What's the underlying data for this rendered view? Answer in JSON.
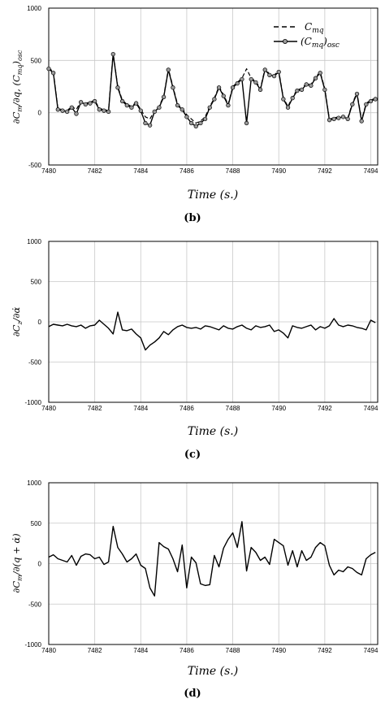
{
  "chart_data": [
    {
      "type": "line",
      "panel": "(b)",
      "xlabel": "Time (s.)",
      "ylabel": "∂Cm/∂q, (Cmq)osc",
      "xlim": [
        7480,
        7494.3
      ],
      "ylim": [
        -500,
        1000
      ],
      "xticks": [
        7480,
        7482,
        7484,
        7486,
        7488,
        7490,
        7492,
        7494
      ],
      "yticks": [
        -500,
        0,
        500,
        1000
      ],
      "grid": true,
      "legend_position": "top-right",
      "series": [
        {
          "name": "Cmq",
          "style": "dashed",
          "x": [
            7480.0,
            7480.2,
            7480.4,
            7480.6,
            7480.8,
            7481.0,
            7481.2,
            7481.4,
            7481.6,
            7481.8,
            7482.0,
            7482.2,
            7482.4,
            7482.6,
            7482.8,
            7483.0,
            7483.2,
            7483.4,
            7483.6,
            7483.8,
            7484.0,
            7484.2,
            7484.4,
            7484.6,
            7484.8,
            7485.0,
            7485.2,
            7485.4,
            7485.6,
            7485.8,
            7486.0,
            7486.2,
            7486.4,
            7486.6,
            7486.8,
            7487.0,
            7487.2,
            7487.4,
            7487.6,
            7487.8,
            7488.0,
            7488.2,
            7488.4,
            7488.6,
            7488.8,
            7489.0,
            7489.2,
            7489.4,
            7489.6,
            7489.8,
            7490.0,
            7490.2,
            7490.4,
            7490.6,
            7490.8,
            7491.0,
            7491.2,
            7491.4,
            7491.6,
            7491.8,
            7492.0,
            7492.2,
            7492.4,
            7492.6,
            7492.8,
            7493.0,
            7493.2,
            7493.4,
            7493.6,
            7493.8,
            7494.0,
            7494.2
          ],
          "y": [
            430,
            390,
            40,
            30,
            20,
            60,
            30,
            110,
            90,
            100,
            120,
            40,
            30,
            20,
            570,
            250,
            120,
            80,
            60,
            100,
            30,
            -40,
            -60,
            20,
            60,
            160,
            420,
            250,
            80,
            40,
            -20,
            -60,
            -100,
            -80,
            -40,
            60,
            140,
            250,
            170,
            80,
            250,
            290,
            330,
            420,
            330,
            300,
            230,
            420,
            370,
            360,
            400,
            140,
            60,
            150,
            220,
            230,
            280,
            270,
            340,
            390,
            230,
            -60,
            -50,
            -40,
            -30,
            -50,
            90,
            190,
            -70,
            90,
            120,
            140
          ]
        },
        {
          "name": "(Cmq)osc",
          "style": "solid-marker",
          "x": [
            7480.0,
            7480.2,
            7480.4,
            7480.6,
            7480.8,
            7481.0,
            7481.2,
            7481.4,
            7481.6,
            7481.8,
            7482.0,
            7482.2,
            7482.4,
            7482.6,
            7482.8,
            7483.0,
            7483.2,
            7483.4,
            7483.6,
            7483.8,
            7484.0,
            7484.2,
            7484.4,
            7484.6,
            7484.8,
            7485.0,
            7485.2,
            7485.4,
            7485.6,
            7485.8,
            7486.0,
            7486.2,
            7486.4,
            7486.6,
            7486.8,
            7487.0,
            7487.2,
            7487.4,
            7487.6,
            7487.8,
            7488.0,
            7488.2,
            7488.4,
            7488.6,
            7488.8,
            7489.0,
            7489.2,
            7489.4,
            7489.6,
            7489.8,
            7490.0,
            7490.2,
            7490.4,
            7490.6,
            7490.8,
            7491.0,
            7491.2,
            7491.4,
            7491.6,
            7491.8,
            7492.0,
            7492.2,
            7492.4,
            7492.6,
            7492.8,
            7493.0,
            7493.2,
            7493.4,
            7493.6,
            7493.8,
            7494.0,
            7494.2
          ],
          "y": [
            420,
            380,
            30,
            20,
            10,
            50,
            -10,
            100,
            80,
            90,
            110,
            30,
            20,
            10,
            560,
            240,
            110,
            70,
            50,
            90,
            20,
            -100,
            -120,
            10,
            50,
            150,
            410,
            240,
            70,
            30,
            -40,
            -100,
            -130,
            -100,
            -60,
            50,
            130,
            240,
            160,
            70,
            240,
            280,
            320,
            -100,
            320,
            290,
            220,
            410,
            360,
            350,
            390,
            130,
            50,
            140,
            210,
            220,
            270,
            260,
            330,
            380,
            220,
            -70,
            -60,
            -50,
            -40,
            -60,
            80,
            180,
            -80,
            80,
            110,
            130
          ]
        }
      ]
    },
    {
      "type": "line",
      "panel": "(c)",
      "xlabel": "Time (s.)",
      "ylabel": "∂Cz/∂α̇",
      "xlim": [
        7480,
        7494.3
      ],
      "ylim": [
        -1000,
        1000
      ],
      "xticks": [
        7480,
        7482,
        7484,
        7486,
        7488,
        7490,
        7492,
        7494
      ],
      "yticks": [
        -1000,
        -500,
        0,
        500,
        1000
      ],
      "grid": true,
      "series": [
        {
          "name": "",
          "x": [
            7480.0,
            7480.2,
            7480.4,
            7480.6,
            7480.8,
            7481.0,
            7481.2,
            7481.4,
            7481.6,
            7481.8,
            7482.0,
            7482.2,
            7482.4,
            7482.6,
            7482.8,
            7483.0,
            7483.2,
            7483.4,
            7483.6,
            7483.8,
            7484.0,
            7484.2,
            7484.4,
            7484.6,
            7484.8,
            7485.0,
            7485.2,
            7485.4,
            7485.6,
            7485.8,
            7486.0,
            7486.2,
            7486.4,
            7486.6,
            7486.8,
            7487.0,
            7487.2,
            7487.4,
            7487.6,
            7487.8,
            7488.0,
            7488.2,
            7488.4,
            7488.6,
            7488.8,
            7489.0,
            7489.2,
            7489.4,
            7489.6,
            7489.8,
            7490.0,
            7490.2,
            7490.4,
            7490.6,
            7490.8,
            7491.0,
            7491.2,
            7491.4,
            7491.6,
            7491.8,
            7492.0,
            7492.2,
            7492.4,
            7492.6,
            7492.8,
            7493.0,
            7493.2,
            7493.4,
            7493.6,
            7493.8,
            7494.0,
            7494.2
          ],
          "y": [
            -60,
            -30,
            -40,
            -50,
            -30,
            -50,
            -60,
            -40,
            -80,
            -50,
            -40,
            20,
            -30,
            -80,
            -150,
            120,
            -100,
            -110,
            -90,
            -150,
            -200,
            -350,
            -290,
            -250,
            -200,
            -120,
            -160,
            -100,
            -60,
            -40,
            -70,
            -80,
            -70,
            -90,
            -50,
            -60,
            -80,
            -100,
            -50,
            -80,
            -90,
            -60,
            -40,
            -80,
            -100,
            -50,
            -70,
            -60,
            -40,
            -120,
            -100,
            -140,
            -200,
            -50,
            -70,
            -80,
            -60,
            -40,
            -100,
            -60,
            -80,
            -50,
            40,
            -40,
            -60,
            -40,
            -50,
            -70,
            -80,
            -100,
            20,
            -10
          ]
        }
      ]
    },
    {
      "type": "line",
      "panel": "(d)",
      "xlabel": "Time (s.)",
      "ylabel": "∂Cm/∂(q + α̇)",
      "xlim": [
        7480,
        7494.3
      ],
      "ylim": [
        -1000,
        1000
      ],
      "xticks": [
        7480,
        7482,
        7484,
        7486,
        7488,
        7490,
        7492,
        7494
      ],
      "yticks": [
        -1000,
        -500,
        0,
        500,
        1000
      ],
      "grid": true,
      "series": [
        {
          "name": "",
          "x": [
            7480.0,
            7480.2,
            7480.4,
            7480.6,
            7480.8,
            7481.0,
            7481.2,
            7481.4,
            7481.6,
            7481.8,
            7482.0,
            7482.2,
            7482.4,
            7482.6,
            7482.8,
            7483.0,
            7483.2,
            7483.4,
            7483.6,
            7483.8,
            7484.0,
            7484.2,
            7484.4,
            7484.6,
            7484.8,
            7485.0,
            7485.2,
            7485.4,
            7485.6,
            7485.8,
            7486.0,
            7486.2,
            7486.4,
            7486.6,
            7486.8,
            7487.0,
            7487.2,
            7487.4,
            7487.6,
            7487.8,
            7488.0,
            7488.2,
            7488.4,
            7488.6,
            7488.8,
            7489.0,
            7489.2,
            7489.4,
            7489.6,
            7489.8,
            7490.0,
            7490.2,
            7490.4,
            7490.6,
            7490.8,
            7491.0,
            7491.2,
            7491.4,
            7491.6,
            7491.8,
            7492.0,
            7492.2,
            7492.4,
            7492.6,
            7492.8,
            7493.0,
            7493.2,
            7493.4,
            7493.6,
            7493.8,
            7494.0,
            7494.2
          ],
          "y": [
            80,
            110,
            60,
            40,
            20,
            100,
            -20,
            90,
            120,
            110,
            60,
            80,
            -10,
            20,
            460,
            200,
            120,
            20,
            60,
            120,
            -20,
            -60,
            -300,
            -400,
            260,
            210,
            180,
            60,
            -100,
            230,
            -300,
            80,
            10,
            -250,
            -270,
            -260,
            100,
            -40,
            190,
            300,
            380,
            200,
            520,
            -90,
            200,
            140,
            40,
            80,
            -10,
            300,
            260,
            220,
            -20,
            160,
            -40,
            160,
            40,
            80,
            200,
            260,
            220,
            -20,
            -140,
            -80,
            -100,
            -40,
            -60,
            -110,
            -140,
            60,
            110,
            140
          ]
        }
      ]
    }
  ],
  "figure": {
    "panel_b_label": "(b)",
    "panel_c_label": "(c)",
    "panel_d_label": "(d)",
    "legend_cmq": "Cmq",
    "legend_osc": "(Cmq)osc",
    "xlabel": "Time (s.)",
    "ylabel_b": "∂Cm/∂q, (Cmq)osc",
    "ylabel_c": "∂Cz/∂α̇",
    "ylabel_d": "∂Cm/∂(q + α̇)",
    "colors": {
      "line": "#000000",
      "grid": "#c8c8c8",
      "marker_fill": "#9a9a9a"
    }
  }
}
